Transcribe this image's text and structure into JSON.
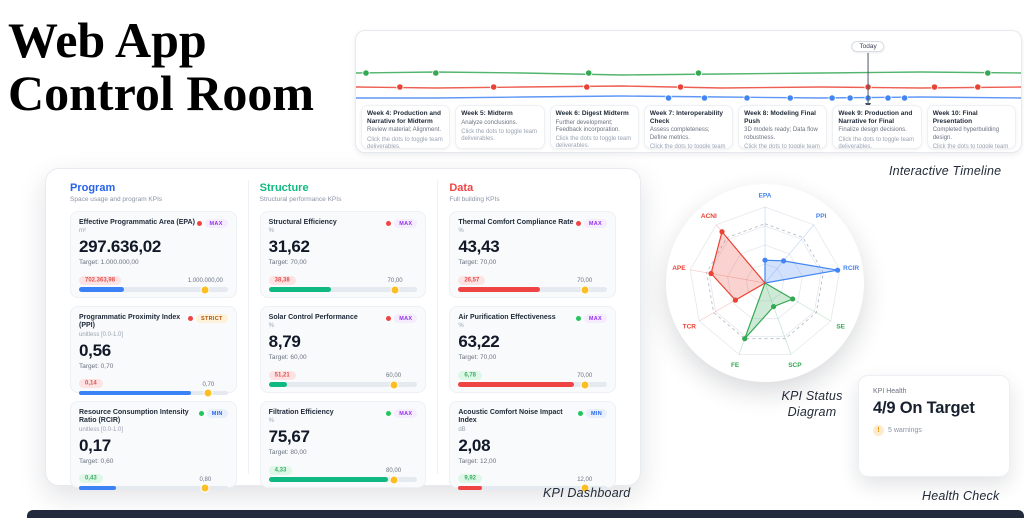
{
  "page": {
    "title_line1": "Web App",
    "title_line2": "Control Room"
  },
  "captions": {
    "timeline": "Interactive Timeline",
    "dashboard": "KPI Dashboard",
    "radar_line1": "KPI Status",
    "radar_line2": "Diagram",
    "health": "Health Check"
  },
  "timeline": {
    "today_label": "Today",
    "today_x_pct": 77,
    "tracks": [
      {
        "name": "green-track",
        "color": "#34a853",
        "y": 42,
        "dots_pct": [
          1.5,
          12,
          35,
          51.5,
          95
        ]
      },
      {
        "name": "red-track",
        "color": "#ea4335",
        "y": 56,
        "dots_pct": [
          6.6,
          20.7,
          34.7,
          48.8,
          77,
          87,
          93.5
        ]
      },
      {
        "name": "blue-track",
        "color": "#4285f4",
        "y": 67,
        "dots_pct": [
          47,
          52.4,
          58.8,
          65.3,
          71.6,
          74.3,
          77,
          80,
          82.5
        ]
      }
    ],
    "weeks": [
      {
        "title": "Week 4: Production and Narrative for Midterm",
        "desc": "Review material; Alignment.",
        "hint": "Click the dots to toggle team deliverables."
      },
      {
        "title": "Week 5: Midterm",
        "desc": "Analyze conclusions.",
        "hint": "Click the dots to toggle team deliverables."
      },
      {
        "title": "Week 6: Digest Midterm",
        "desc": "Further development; Feedback incorporation.",
        "hint": "Click the dots to toggle team deliverables."
      },
      {
        "title": "Week 7: Interoperability Check",
        "desc": "Assess completeness; Define metrics.",
        "hint": "Click the dots to toggle team deliverables."
      },
      {
        "title": "Week 8: Modeling Final Push",
        "desc": "3D models ready; Data flow robustness.",
        "hint": "Click the dots to toggle team deliverables."
      },
      {
        "title": "Week 9: Production and Narrative for Final",
        "desc": "Finalize design decisions.",
        "hint": "Click the dots to toggle team deliverables."
      },
      {
        "title": "Week 10: Final Presentation",
        "desc": "Completed hyperbuilding design.",
        "hint": "Click the dots to toggle team deliverables."
      }
    ]
  },
  "kpi": {
    "columns": [
      {
        "name": "Program",
        "color": "#2563eb",
        "subtitle": "Space usage and program KPIs",
        "bar_color": "#3b82f6",
        "cards": [
          {
            "title": "Effective Programmatic Area (EPA)",
            "unit": "m²",
            "status": "red",
            "badge": "MAX",
            "badge_type": "max",
            "value": "297.636,02",
            "target_label": "Target: 1.000.000,00",
            "delta": "702.363,98",
            "delta_type": "bad",
            "axis_label": "1.000.000,00",
            "fill_pct": 30,
            "marker_pct": 85
          },
          {
            "title": "Programmatic Proximity Index (PPI)",
            "unit": "unitless [0.0-1.0]",
            "status": "red",
            "badge": "STRICT",
            "badge_type": "strict",
            "value": "0,56",
            "target_label": "Target: 0,70",
            "delta": "0,14",
            "delta_type": "bad",
            "axis_label": "0,70",
            "fill_pct": 75,
            "marker_pct": 87
          },
          {
            "title": "Resource Consumption Intensity Ratio (RCIR)",
            "unit": "unitless [0.0-1.0]",
            "status": "green",
            "badge": "MIN",
            "badge_type": "min",
            "value": "0,17",
            "target_label": "Target: 0,60",
            "delta": "0,43",
            "delta_type": "good",
            "axis_label": "0,80",
            "fill_pct": 25,
            "marker_pct": 85
          }
        ]
      },
      {
        "name": "Structure",
        "color": "#10b981",
        "subtitle": "Structural performance KPIs",
        "bar_color": "#10b981",
        "cards": [
          {
            "title": "Structural Efficiency",
            "unit": "%",
            "status": "red",
            "badge": "MAX",
            "badge_type": "max",
            "value": "31,62",
            "target_label": "Target: 70,00",
            "delta": "38,38",
            "delta_type": "bad",
            "axis_label": "70,00",
            "fill_pct": 42,
            "marker_pct": 85
          },
          {
            "title": "Solar Control Performance",
            "unit": "%",
            "status": "red",
            "badge": "MAX",
            "badge_type": "max",
            "value": "8,79",
            "target_label": "Target: 60,00",
            "delta": "51,21",
            "delta_type": "bad",
            "axis_label": "60,00",
            "fill_pct": 12,
            "marker_pct": 84
          },
          {
            "title": "Filtration Efficiency",
            "unit": "%",
            "status": "green",
            "badge": "MAX",
            "badge_type": "max",
            "value": "75,67",
            "target_label": "Target: 80,00",
            "delta": "4,33",
            "delta_type": "good",
            "axis_label": "80,00",
            "fill_pct": 80,
            "marker_pct": 84
          }
        ]
      },
      {
        "name": "Data",
        "color": "#ef4444",
        "subtitle": "Full building KPIs",
        "bar_color": "#ef4444",
        "cards": [
          {
            "title": "Thermal Comfort Compliance Rate",
            "unit": "%",
            "status": "red",
            "badge": "MAX",
            "badge_type": "max",
            "value": "43,43",
            "target_label": "Target: 70,00",
            "delta": "26,57",
            "delta_type": "bad",
            "axis_label": "70,00",
            "fill_pct": 55,
            "marker_pct": 85
          },
          {
            "title": "Air Purification Effectiveness",
            "unit": "%",
            "status": "green",
            "badge": "MAX",
            "badge_type": "max",
            "value": "63,22",
            "target_label": "Target: 70,00",
            "delta": "6,78",
            "delta_type": "good",
            "axis_label": "70,00",
            "fill_pct": 78,
            "marker_pct": 85
          },
          {
            "title": "Acoustic Comfort Noise Impact Index",
            "unit": "dB",
            "status": "green",
            "badge": "MIN",
            "badge_type": "min",
            "value": "2,08",
            "target_label": "Target: 12,00",
            "delta": "9,92",
            "delta_type": "good",
            "axis_label": "12,00",
            "fill_pct": 16,
            "marker_pct": 85
          }
        ]
      }
    ]
  },
  "radar": {
    "axes": [
      {
        "label": "EPA",
        "group": "program",
        "value": 0.3
      },
      {
        "label": "PPI",
        "group": "program",
        "value": 0.38
      },
      {
        "label": "RCIR",
        "group": "program",
        "value": 0.97
      },
      {
        "label": "SE",
        "group": "structure",
        "value": 0.42
      },
      {
        "label": "SCP",
        "group": "structure",
        "value": 0.33
      },
      {
        "label": "FE",
        "group": "structure",
        "value": 0.78
      },
      {
        "label": "TCR",
        "group": "data",
        "value": 0.45
      },
      {
        "label": "APE",
        "group": "data",
        "value": 0.72
      },
      {
        "label": "ACNI",
        "group": "data",
        "value": 0.88
      }
    ],
    "group_colors": {
      "program": "#4285f4",
      "structure": "#34a853",
      "data": "#ea4335"
    },
    "target_ring": 0.78
  },
  "health": {
    "label": "KPI Health",
    "value": "4/9 On Target",
    "warning_icon": "!",
    "warnings": "5 warnings"
  }
}
